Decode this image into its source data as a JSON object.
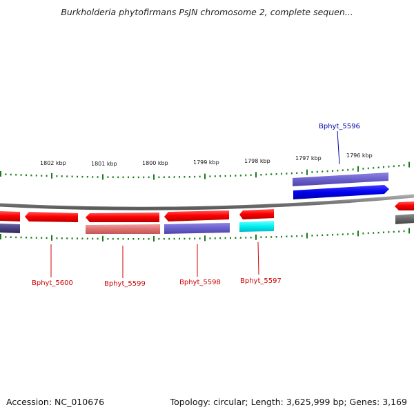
{
  "title": "Burkholderia phytofirmans PsJN chromosome 2, complete sequen...",
  "footer": {
    "accession": "Accession: NC_010676",
    "topology": "Topology: circular; Length: 3,625,999 bp; Genes: 3,169"
  },
  "colors": {
    "strand_positive": "#ff0000",
    "forward_blue": "#0000ee",
    "label_red": "#cc0000",
    "label_blue": "#0000aa",
    "tick_green": "#1a7a1a",
    "backbone": "#888888"
  },
  "ticks": [
    {
      "label": "1802 kbp"
    },
    {
      "label": "1801 kbp"
    },
    {
      "label": "1800 kbp"
    },
    {
      "label": "1799 kbp"
    },
    {
      "label": "1798 kbp"
    },
    {
      "label": "1797 kbp"
    },
    {
      "label": "1796 kbp"
    }
  ],
  "gene_labels": [
    {
      "name": "Bphyt_5596",
      "strand": "forward"
    },
    {
      "name": "Bphyt_5600",
      "strand": "reverse"
    },
    {
      "name": "Bphyt_5599",
      "strand": "reverse"
    },
    {
      "name": "Bphyt_5598",
      "strand": "reverse"
    },
    {
      "name": "Bphyt_5597",
      "strand": "reverse"
    }
  ]
}
